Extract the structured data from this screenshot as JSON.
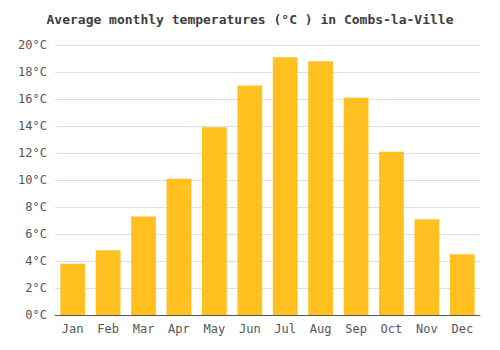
{
  "chart_data": {
    "type": "bar",
    "title": "Average monthly temperatures (°C ) in Combs-la-Ville",
    "categories": [
      "Jan",
      "Feb",
      "Mar",
      "Apr",
      "May",
      "Jun",
      "Jul",
      "Aug",
      "Sep",
      "Oct",
      "Nov",
      "Dec"
    ],
    "values": [
      3.8,
      4.8,
      7.3,
      10.1,
      13.9,
      17.0,
      19.1,
      18.8,
      16.1,
      12.1,
      7.1,
      4.5
    ],
    "color": "#FFC020",
    "ylim": [
      0,
      20
    ],
    "yticks": [
      {
        "value": 0,
        "label": "0°C"
      },
      {
        "value": 2,
        "label": "2°C"
      },
      {
        "value": 4,
        "label": "4°C"
      },
      {
        "value": 6,
        "label": "6°C"
      },
      {
        "value": 8,
        "label": "8°C"
      },
      {
        "value": 10,
        "label": "10°C"
      },
      {
        "value": 12,
        "label": "12°C"
      },
      {
        "value": 14,
        "label": "14°C"
      },
      {
        "value": 16,
        "label": "16°C"
      },
      {
        "value": 18,
        "label": "18°C"
      },
      {
        "value": 20,
        "label": "20°C"
      }
    ],
    "grid": true
  }
}
